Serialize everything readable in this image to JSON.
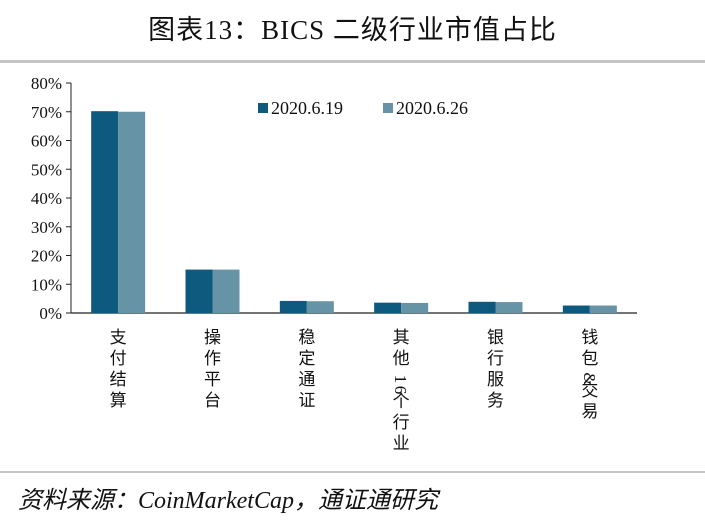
{
  "header": {
    "title": "图表13：BICS 二级行业市值占比"
  },
  "footer": {
    "source": "资料来源：CoinMarketCap，通证通研究"
  },
  "colors": {
    "series1": "#0d5a7e",
    "series2": "#6693a5",
    "axis": "#222222"
  },
  "chart_data": {
    "type": "bar",
    "title": "图表13：BICS 二级行业市值占比",
    "xlabel": "",
    "ylabel": "",
    "ylim": [
      0,
      80
    ],
    "yticks": [
      "0%",
      "10%",
      "20%",
      "30%",
      "40%",
      "50%",
      "60%",
      "70%",
      "80%"
    ],
    "grid": false,
    "legend_position": "top-center",
    "categories": [
      "支付结算",
      "操作平台",
      "稳定通证",
      "其他16个行业",
      "银行服务",
      "钱包&交易"
    ],
    "series": [
      {
        "name": "2020.6.19",
        "color": "#0d5a7e",
        "values": [
          70.2,
          15.1,
          4.2,
          3.6,
          3.9,
          2.6
        ]
      },
      {
        "name": "2020.6.26",
        "color": "#6693a5",
        "values": [
          70.0,
          15.1,
          4.1,
          3.5,
          3.8,
          2.6
        ]
      }
    ]
  }
}
